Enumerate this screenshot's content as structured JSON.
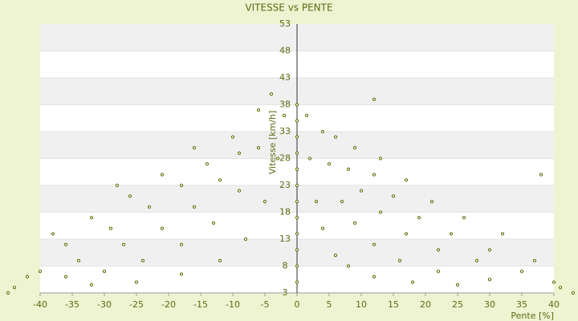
{
  "chart_data": {
    "type": "scatter",
    "title": "VITESSE vs PENTE",
    "x_label": "Pente [%]",
    "y_label": "Vitesse [km/h]",
    "color": "#556b00",
    "x": [
      1.5,
      2,
      3,
      4,
      6,
      8,
      12,
      18,
      25,
      4,
      5,
      7,
      9,
      12,
      16,
      22,
      30,
      6,
      8,
      10,
      13,
      17,
      22,
      28,
      35,
      9,
      12,
      15,
      19,
      24,
      30,
      37,
      13,
      17,
      21,
      26,
      32,
      -2,
      -3,
      -5,
      -8,
      -12,
      -18,
      -25,
      -32,
      -4,
      -6,
      -9,
      -13,
      -18,
      -24,
      -30,
      -36,
      -6,
      -9,
      -12,
      -16,
      -21,
      -27,
      -34,
      -40,
      -10,
      -14,
      -18,
      -23,
      -29,
      -36,
      -16,
      -21,
      -26,
      -32,
      -38,
      0,
      0,
      0,
      0,
      0,
      0,
      0,
      0,
      0,
      0,
      0,
      0,
      -44,
      -42,
      -45,
      41,
      43,
      40,
      -28,
      12,
      38
    ],
    "values": [
      36,
      28,
      20,
      15,
      10,
      8,
      6,
      5,
      4.5,
      33,
      27,
      20,
      16,
      12,
      9,
      7,
      5.5,
      32,
      26,
      22,
      18,
      14,
      11,
      9,
      7,
      30,
      25,
      21,
      17,
      14,
      11,
      9,
      28,
      24,
      20,
      17,
      14,
      36,
      28,
      20,
      13,
      9,
      6.5,
      5,
      4.5,
      40,
      30,
      22,
      16,
      12,
      9,
      7,
      6,
      37,
      29,
      24,
      19,
      15,
      12,
      9,
      7,
      32,
      27,
      23,
      19,
      15,
      12,
      30,
      25,
      21,
      17,
      14,
      5,
      8,
      11,
      14,
      17,
      20,
      23,
      26,
      29,
      32,
      35,
      38,
      4,
      6,
      3,
      4,
      3,
      5,
      23,
      39,
      25
    ],
    "xlim": [
      -46.25,
      43.75
    ],
    "ylim": [
      3,
      53
    ],
    "xticks": [
      -40,
      -35,
      -30,
      -25,
      -20,
      -15,
      -10,
      -5,
      0,
      5,
      10,
      15,
      20,
      25,
      30,
      35,
      40
    ],
    "yticks": [
      3,
      8,
      13,
      18,
      23,
      28,
      33,
      38,
      43,
      48,
      53
    ],
    "grid": true
  }
}
